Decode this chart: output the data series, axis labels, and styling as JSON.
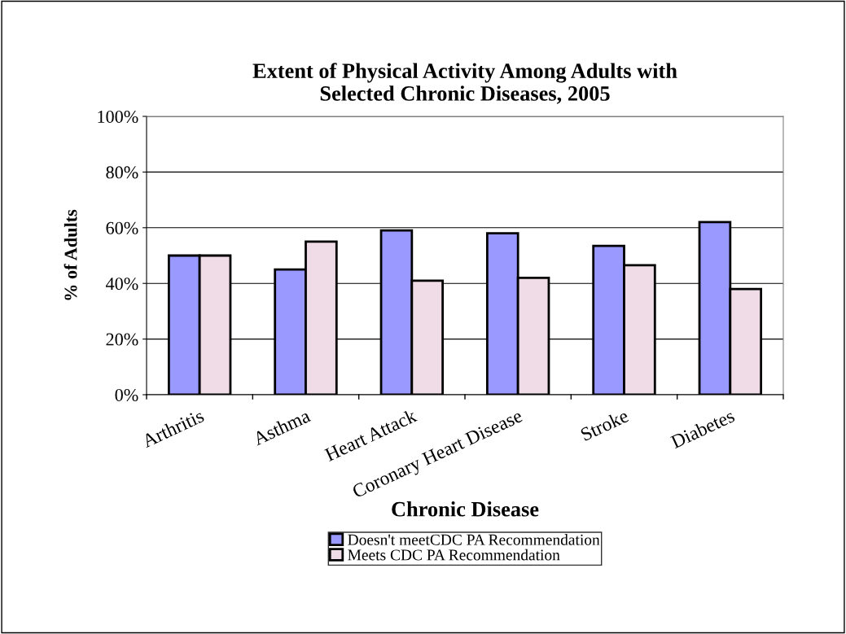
{
  "chart_data": {
    "type": "bar",
    "title": "Extent of Physical Activity Among Adults with\nSelected Chronic Diseases, 2005",
    "xlabel": "Chronic Disease",
    "ylabel": "% of Adults",
    "categories": [
      "Arthritis",
      "Asthma",
      "Heart Attack",
      "Coronary Heart Disease",
      "Stroke",
      "Diabetes"
    ],
    "series": [
      {
        "name": "Doesn't meetCDC PA Recommendation",
        "color": "#9999ff",
        "values": [
          50,
          45,
          59,
          58,
          53.5,
          62
        ]
      },
      {
        "name": "Meets CDC PA Recommendation",
        "color": "#f0dce6",
        "values": [
          50,
          55,
          41,
          42,
          46.5,
          38
        ]
      }
    ],
    "ylim": [
      0,
      100
    ],
    "yticks": [
      {
        "value": 0,
        "label": "0%"
      },
      {
        "value": 20,
        "label": "20%"
      },
      {
        "value": 40,
        "label": "40%"
      },
      {
        "value": 60,
        "label": "60%"
      },
      {
        "value": 80,
        "label": "80%"
      },
      {
        "value": 100,
        "label": "100%"
      }
    ],
    "grid": "y",
    "legend": "bottom"
  }
}
